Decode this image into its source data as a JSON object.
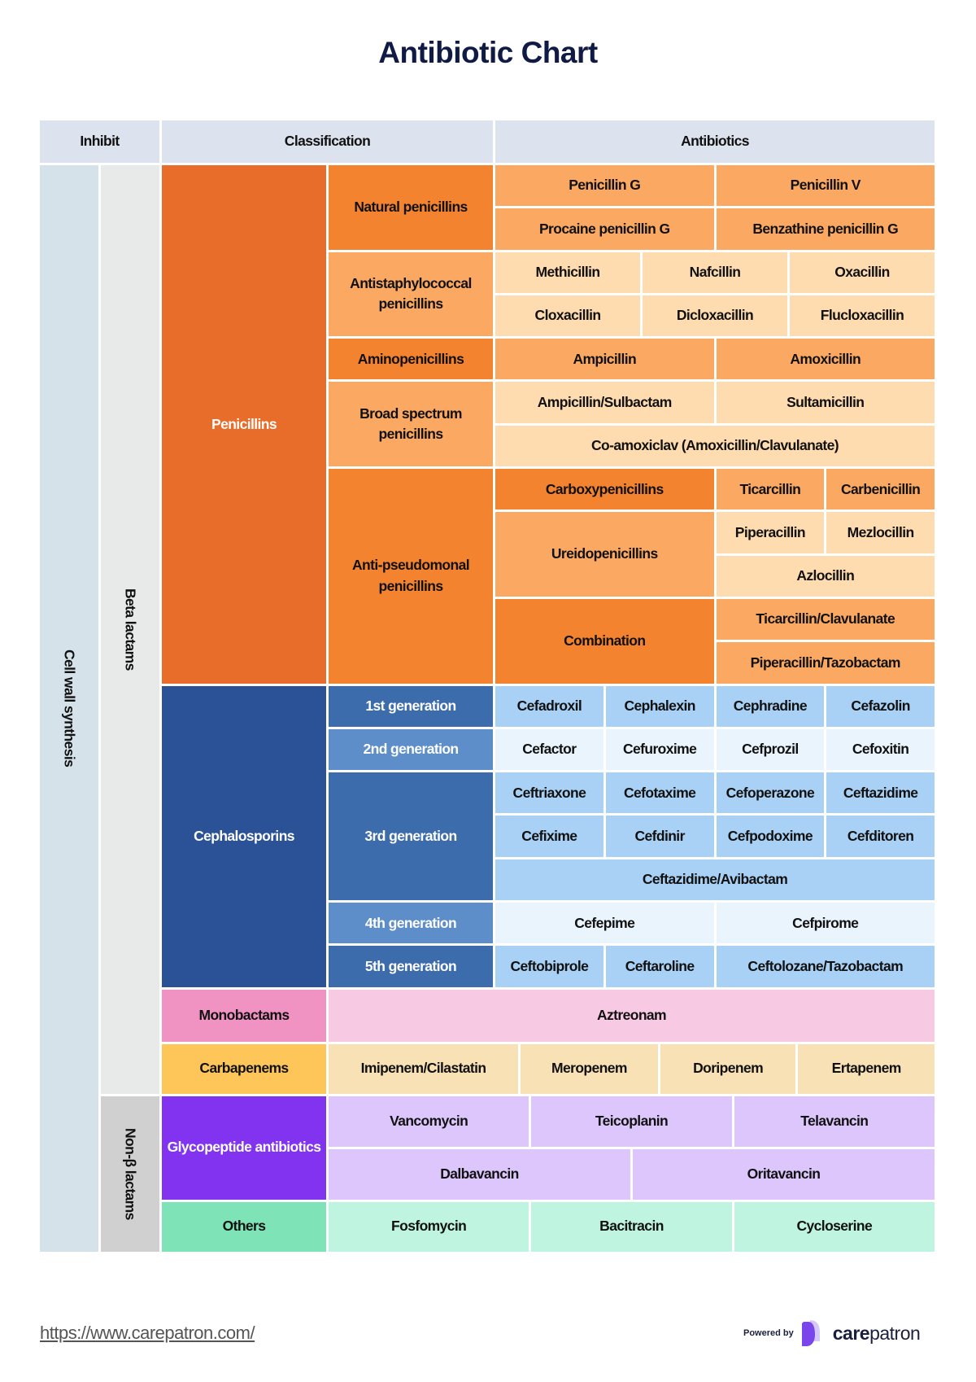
{
  "title": "Antibiotic Chart",
  "headers": {
    "inhibit": "Inhibit",
    "classification": "Classification",
    "antibiotics": "Antibiotics"
  },
  "inhibit": {
    "mechanism": "Cell wall synthesis",
    "beta": "Beta lactams",
    "non_beta": "Non-β lactams"
  },
  "penicillins": {
    "label": "Penicillins",
    "natural": {
      "label": "Natural penicillins",
      "drugs": [
        "Penicillin G",
        "Penicillin V",
        "Procaine penicillin G",
        "Benzathine penicillin G"
      ]
    },
    "antistaph": {
      "label": "Antistaphylococcal penicillins",
      "drugs": [
        "Methicillin",
        "Nafcillin",
        "Oxacillin",
        "Cloxacillin",
        "Dicloxacillin",
        "Flucloxacillin"
      ]
    },
    "amino": {
      "label": "Aminopenicillins",
      "drugs": [
        "Ampicillin",
        "Amoxicillin"
      ]
    },
    "broad": {
      "label": "Broad spectrum penicillins",
      "drugs": [
        "Ampicillin/Sulbactam",
        "Sultamicillin",
        "Co-amoxiclav (Amoxicillin/Clavulanate)"
      ]
    },
    "antipseudo": {
      "label": "Anti-pseudomonal penicillins",
      "carboxy": {
        "label": "Carboxypenicillins",
        "drugs": [
          "Ticarcillin",
          "Carbenicillin"
        ]
      },
      "ureido": {
        "label": "Ureidopenicillins",
        "drugs": [
          "Piperacillin",
          "Mezlocillin",
          "Azlocillin"
        ]
      },
      "combination": {
        "label": "Combination",
        "drugs": [
          "Ticarcillin/Clavulanate",
          "Piperacillin/Tazobactam"
        ]
      }
    }
  },
  "cephalosporins": {
    "label": "Cephalosporins",
    "gen1": {
      "label": "1st generation",
      "drugs": [
        "Cefadroxil",
        "Cephalexin",
        "Cephradine",
        "Cefazolin"
      ]
    },
    "gen2": {
      "label": "2nd generation",
      "drugs": [
        "Cefactor",
        "Cefuroxime",
        "Cefprozil",
        "Cefoxitin"
      ]
    },
    "gen3": {
      "label": "3rd generation",
      "drugs": [
        "Ceftriaxone",
        "Cefotaxime",
        "Cefoperazone",
        "Ceftazidime",
        "Cefixime",
        "Cefdinir",
        "Cefpodoxime",
        "Cefditoren",
        "Ceftazidime/Avibactam"
      ]
    },
    "gen4": {
      "label": "4th generation",
      "drugs": [
        "Cefepime",
        "Cefpirome"
      ]
    },
    "gen5": {
      "label": "5th generation",
      "drugs": [
        "Ceftobiprole",
        "Ceftaroline",
        "Ceftolozane/Tazobactam"
      ]
    }
  },
  "monobactams": {
    "label": "Monobactams",
    "drugs": [
      "Aztreonam"
    ]
  },
  "carbapenems": {
    "label": "Carbapenems",
    "drugs": [
      "Imipenem/Cilastatin",
      "Meropenem",
      "Doripenem",
      "Ertapenem"
    ]
  },
  "glycopeptides": {
    "label": "Glycopeptide antibiotics",
    "drugs": [
      "Vancomycin",
      "Teicoplanin",
      "Telavancin",
      "Dalbavancin",
      "Oritavancin"
    ]
  },
  "others": {
    "label": "Others",
    "drugs": [
      "Fosfomycin",
      "Bacitracin",
      "Cycloserine"
    ]
  },
  "footer": {
    "link": "https://www.carepatron.com/",
    "powered_by": "Powered by",
    "brand_bold": "care",
    "brand_rest": "patron"
  },
  "colors": {
    "title": "#0f1b45",
    "penicillins": "#e86c2a",
    "cephalosporins": "#2b5296",
    "monobactams": "#f093c2",
    "carbapenems": "#fec659",
    "glycopeptides": "#8233f0",
    "others": "#7ee4b8"
  }
}
